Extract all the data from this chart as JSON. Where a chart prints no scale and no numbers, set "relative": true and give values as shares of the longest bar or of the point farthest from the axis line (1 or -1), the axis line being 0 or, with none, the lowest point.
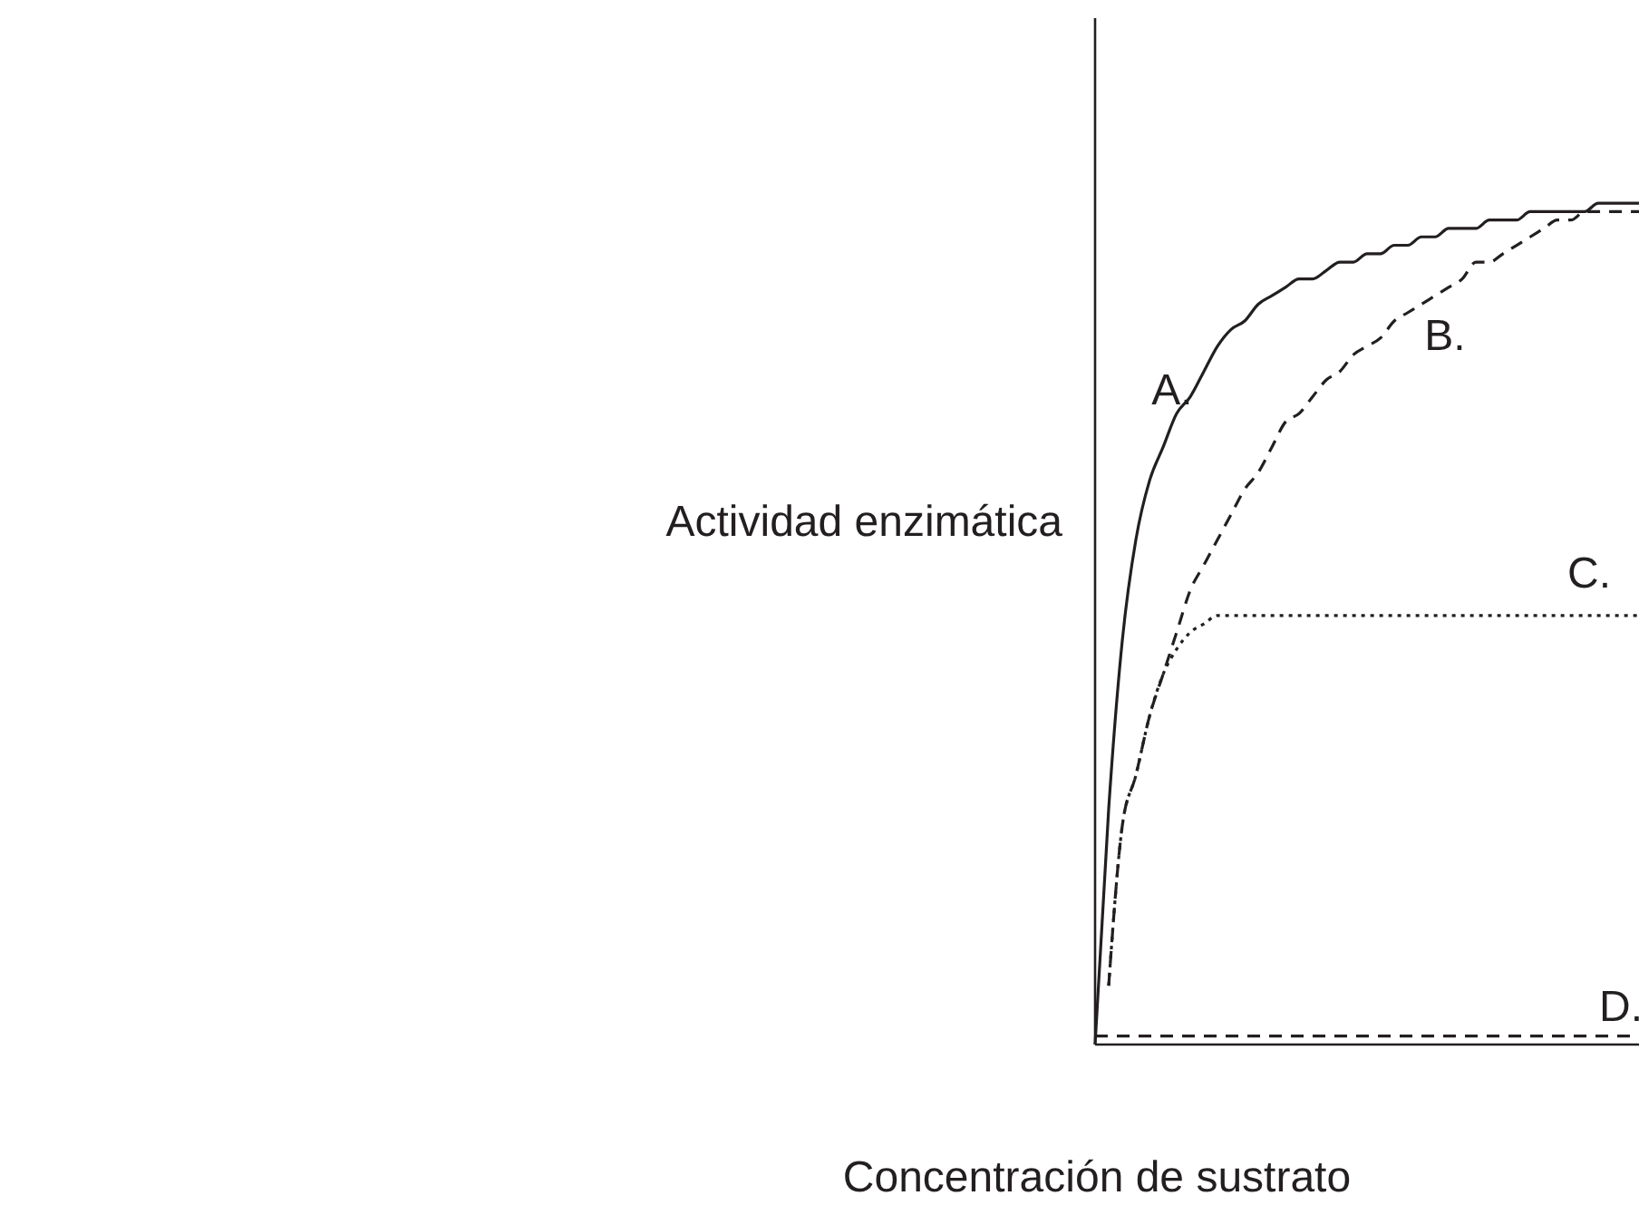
{
  "chart_data": {
    "type": "line",
    "relative": true,
    "xlabel": "Concentración de sustrato",
    "ylabel": "Actividad enzimática",
    "categories": [
      null,
      null,
      null,
      null,
      null,
      null,
      null,
      null,
      null,
      null,
      null,
      null,
      null,
      null,
      null,
      null,
      null,
      null,
      null,
      null,
      null,
      null,
      null,
      null,
      null,
      null,
      null,
      null,
      null,
      null,
      null,
      null,
      null,
      null,
      null,
      null,
      null,
      null,
      null,
      null,
      null
    ],
    "series": [
      {
        "name": "A.",
        "color": "#231f20",
        "line_style": "solid",
        "values": [
          0,
          0.28,
          0.48,
          0.6,
          0.67,
          0.71,
          0.75,
          0.77,
          0.8,
          0.83,
          0.85,
          0.86,
          0.88,
          0.89,
          0.9,
          0.91,
          0.91,
          0.92,
          0.93,
          0.93,
          0.94,
          0.94,
          0.95,
          0.95,
          0.96,
          0.96,
          0.97,
          0.97,
          0.97,
          0.98,
          0.98,
          0.98,
          0.99,
          0.99,
          0.99,
          0.99,
          0.99,
          1.0,
          1.0,
          1.0,
          1.0
        ]
      },
      {
        "name": "B.",
        "color": "#231f20",
        "line_style": "dashed",
        "values": [
          null,
          0.07,
          0.26,
          0.32,
          0.39,
          0.44,
          0.49,
          0.54,
          0.57,
          0.6,
          0.63,
          0.66,
          0.68,
          0.71,
          0.74,
          0.75,
          0.77,
          0.79,
          0.8,
          0.82,
          0.83,
          0.84,
          0.86,
          0.87,
          0.88,
          0.89,
          0.9,
          0.91,
          0.93,
          0.93,
          0.94,
          0.95,
          0.96,
          0.97,
          0.98,
          0.98,
          0.99,
          0.99,
          0.99,
          0.99,
          0.99
        ]
      },
      {
        "name": "C.",
        "color": "#231f20",
        "line_style": "dotted",
        "values": [
          null,
          0.07,
          0.26,
          0.32,
          0.39,
          0.44,
          0.47,
          0.49,
          0.5,
          0.51,
          0.51,
          0.51,
          0.51,
          0.51,
          0.51,
          0.51,
          0.51,
          0.51,
          0.51,
          0.51,
          0.51,
          0.51,
          0.51,
          0.51,
          0.51,
          0.51,
          0.51,
          0.51,
          0.51,
          0.51,
          0.51,
          0.51,
          0.51,
          0.51,
          0.51,
          0.51,
          0.51,
          0.51,
          0.51,
          0.51,
          0.51
        ]
      },
      {
        "name": "D.",
        "color": "#231f20",
        "line_style": "dashed",
        "values": [
          0.01,
          0.01,
          0.01,
          0.01,
          0.01,
          0.01,
          0.01,
          0.01,
          0.01,
          0.01,
          0.01,
          0.01,
          0.01,
          0.01,
          0.01,
          0.01,
          0.01,
          0.01,
          0.01,
          0.01,
          0.01,
          0.01,
          0.01,
          0.01,
          0.01,
          0.01,
          0.01,
          0.01,
          0.01,
          0.01,
          0.01,
          0.01,
          0.01,
          0.01,
          0.01,
          0.01,
          0.01,
          0.01,
          0.01,
          0.01,
          0.01
        ]
      }
    ],
    "grid": false,
    "legend": false
  }
}
